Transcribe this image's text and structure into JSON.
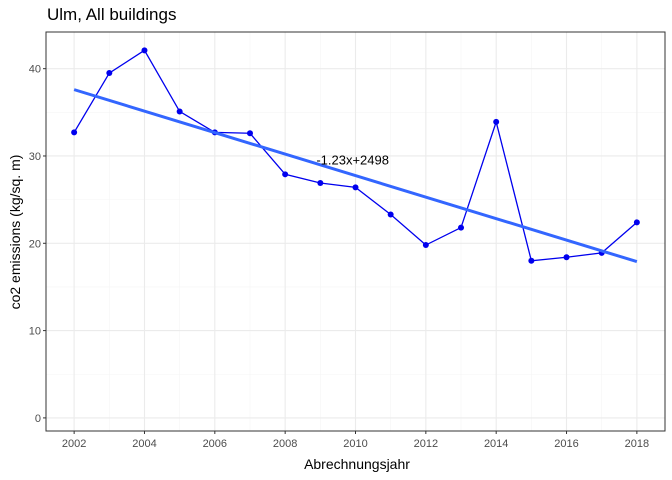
{
  "chart_data": {
    "type": "line",
    "title": "Ulm, All buildings",
    "xlabel": "Abrechnungsjahr",
    "ylabel": "co2 emissions (kg/sq. m)",
    "xlim": [
      2001.2,
      2018.8
    ],
    "ylim": [
      -1.5,
      44.2
    ],
    "x_ticks": [
      2002,
      2004,
      2006,
      2008,
      2010,
      2012,
      2014,
      2016,
      2018
    ],
    "y_ticks": [
      0,
      10,
      20,
      30,
      40
    ],
    "grid": true,
    "series": [
      {
        "x": [
          2002,
          2003,
          2004,
          2005,
          2006,
          2007,
          2008,
          2009,
          2010,
          2011,
          2012,
          2013,
          2014,
          2015,
          2016,
          2017,
          2018
        ],
        "y": [
          32.7,
          39.5,
          42.1,
          35.1,
          32.7,
          32.6,
          27.9,
          26.9,
          26.4,
          23.3,
          19.8,
          21.8,
          33.9,
          18.0,
          18.4,
          18.9,
          22.4
        ],
        "color": "#0000ee"
      }
    ],
    "trend": {
      "slope": -1.23,
      "intercept": 2498,
      "x_range": [
        2002,
        2018
      ],
      "y_range": [
        37.6,
        17.9
      ],
      "color": "#3366ff",
      "label": "-1.23x+2498",
      "label_x": 2009,
      "label_y": 29.6
    },
    "colors": {
      "panel_border": "#333333",
      "grid_major": "#ebebeb",
      "grid_minor": "#f5f5f5",
      "tick_label": "#4d4d4d"
    }
  }
}
